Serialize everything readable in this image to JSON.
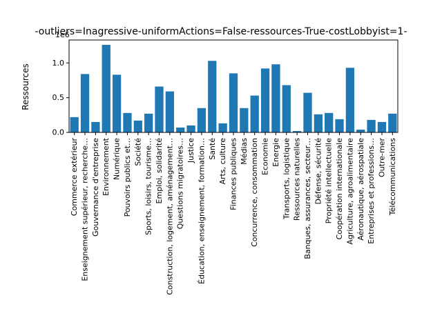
{
  "chart_data": {
    "type": "bar",
    "title": "-outliers=Inagressive-uniformActions=False-ressources-True-costLobbyist=1-",
    "xlabel": "",
    "ylabel": "Ressources",
    "offset_label": "1e6",
    "bar_color": "#1f77b4",
    "ylim": [
      0,
      1330000
    ],
    "yticks": [
      {
        "value": 0,
        "label": "0.0"
      },
      {
        "value": 500000,
        "label": "0.5"
      },
      {
        "value": 1000000,
        "label": "1.0"
      }
    ],
    "categories": [
      "Commerce extérieur",
      "Enseignement supérieur, recherche…",
      "Gouvernance d'entreprise",
      "Environnement",
      "Numérique",
      "Pouvoirs publics et…",
      "Société",
      "Sports, loisirs, tourisme…",
      "Emploi, solidarité",
      "Construction, logement, aménagement…",
      "Questions migratoires…",
      "Justice",
      "Éducation, enseignement, formation…",
      "Santé",
      "Arts, culture",
      "Finances publiques",
      "Médias",
      "Concurrence, consommation",
      "Economie",
      "Energie",
      "Transports, logistique",
      "Ressources naturelles",
      "Banques, assurances, secteur…",
      "Défense, sécurité",
      "Propriété intellectuelle",
      "Coopération internationale",
      "Agriculture, agroalimentaire",
      "Aéronautique, aérospatiale",
      "Entreprises et professions…",
      "Outre-mer",
      "Télécommunications"
    ],
    "values": [
      220000,
      840000,
      150000,
      1260000,
      830000,
      280000,
      170000,
      270000,
      660000,
      590000,
      70000,
      100000,
      350000,
      1030000,
      130000,
      850000,
      350000,
      530000,
      920000,
      980000,
      680000,
      20000,
      570000,
      260000,
      280000,
      190000,
      930000,
      40000,
      180000,
      150000,
      270000
    ]
  }
}
